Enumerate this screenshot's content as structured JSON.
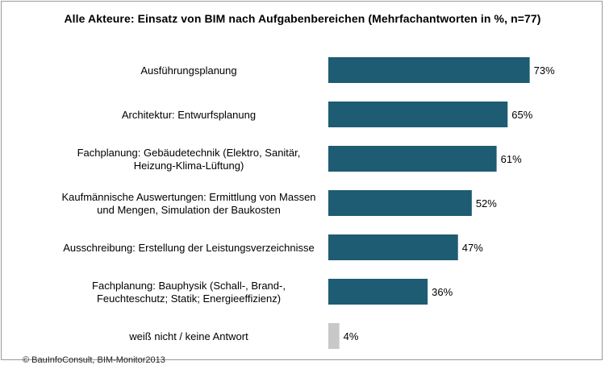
{
  "chart_data": {
    "type": "bar",
    "orientation": "horizontal",
    "title": "Alle Akteure: Einsatz von BIM nach Aufgabenbereichen (Mehrfachantworten in %, n=77)",
    "categories": [
      [
        "Ausführungsplanung"
      ],
      [
        "Architektur: Entwurfsplanung"
      ],
      [
        "Fachplanung: Gebäudetechnik (Elektro, Sanitär,",
        "Heizung-Klima-Lüftung)"
      ],
      [
        "Kaufmännische Auswertungen: Ermittlung von Massen",
        "und Mengen, Simulation der Baukosten"
      ],
      [
        "Ausschreibung: Erstellung der Leistungsverzeichnisse"
      ],
      [
        "Fachplanung: Bauphysik (Schall-, Brand-,",
        "Feuchteschutz; Statik; Energieeffizienz)"
      ],
      [
        "weiß nicht / keine Antwort"
      ]
    ],
    "values": [
      73,
      65,
      61,
      52,
      47,
      36,
      4
    ],
    "value_labels": [
      "73%",
      "65%",
      "61%",
      "52%",
      "47%",
      "36%",
      "4%"
    ],
    "bar_colors": [
      "#1d5c72",
      "#1d5c72",
      "#1d5c72",
      "#1d5c72",
      "#1d5c72",
      "#1d5c72",
      "#c8c8c8"
    ],
    "xlim": [
      0,
      100
    ],
    "grid": false,
    "legend": "none"
  },
  "source": "© BauInfoConsult, BIM-Monitor2013"
}
